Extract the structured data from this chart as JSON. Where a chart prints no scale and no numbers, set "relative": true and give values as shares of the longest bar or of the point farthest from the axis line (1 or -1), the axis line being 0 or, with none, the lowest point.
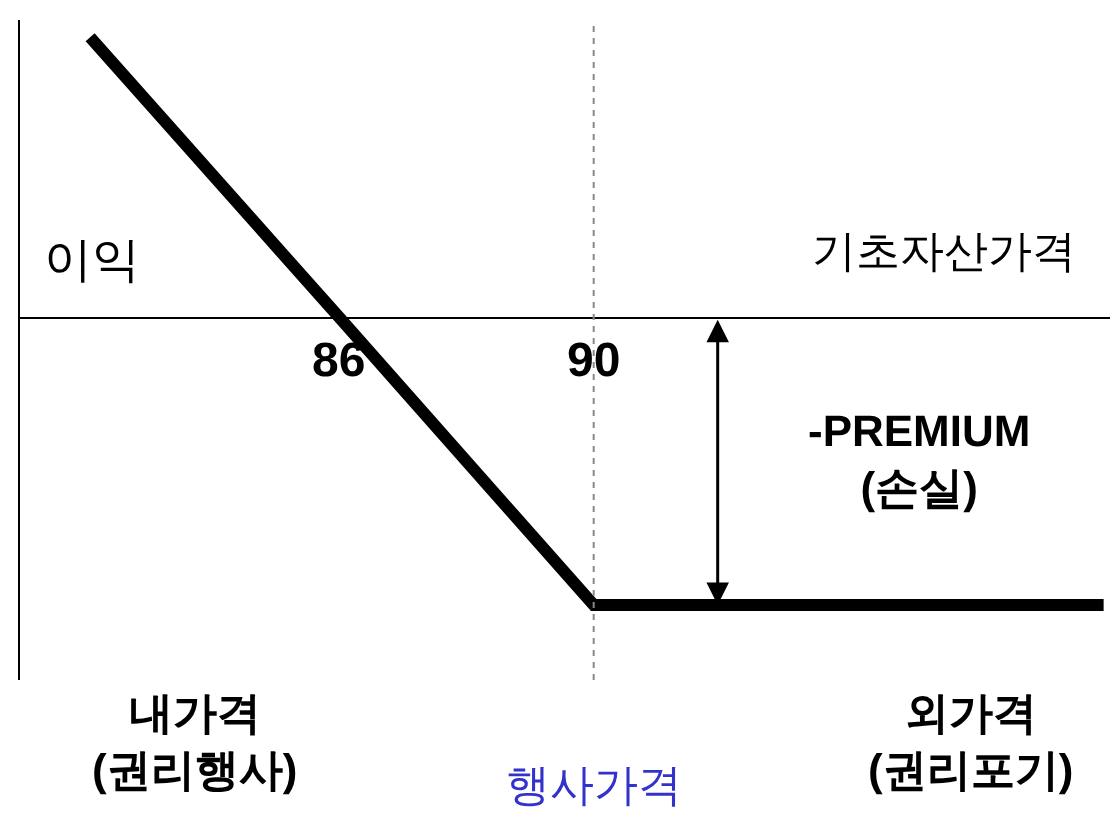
{
  "chart_data": {
    "type": "line",
    "relative": true,
    "xlabel": "기초자산가격",
    "ylabel": "이익",
    "x": [
      82.1,
      86,
      90,
      98
    ],
    "series": [
      {
        "color": "#000000",
        "values": [
          0.97,
          0,
          -1,
          -1
        ]
      }
    ],
    "xlim": [
      81,
      98.1
    ],
    "xticks": [
      86,
      90
    ],
    "marker": "none",
    "line_style": "solid",
    "legend": false,
    "ref_lines": [
      {
        "axis": "x",
        "value": 90,
        "label": "행사가격",
        "color": "#888888",
        "line_style": "dotted"
      }
    ],
    "annotations": [
      "-PREMIUM\n(손실)",
      "내가격\n(권리행사)",
      "외가격\n(권리포기)"
    ]
  }
}
